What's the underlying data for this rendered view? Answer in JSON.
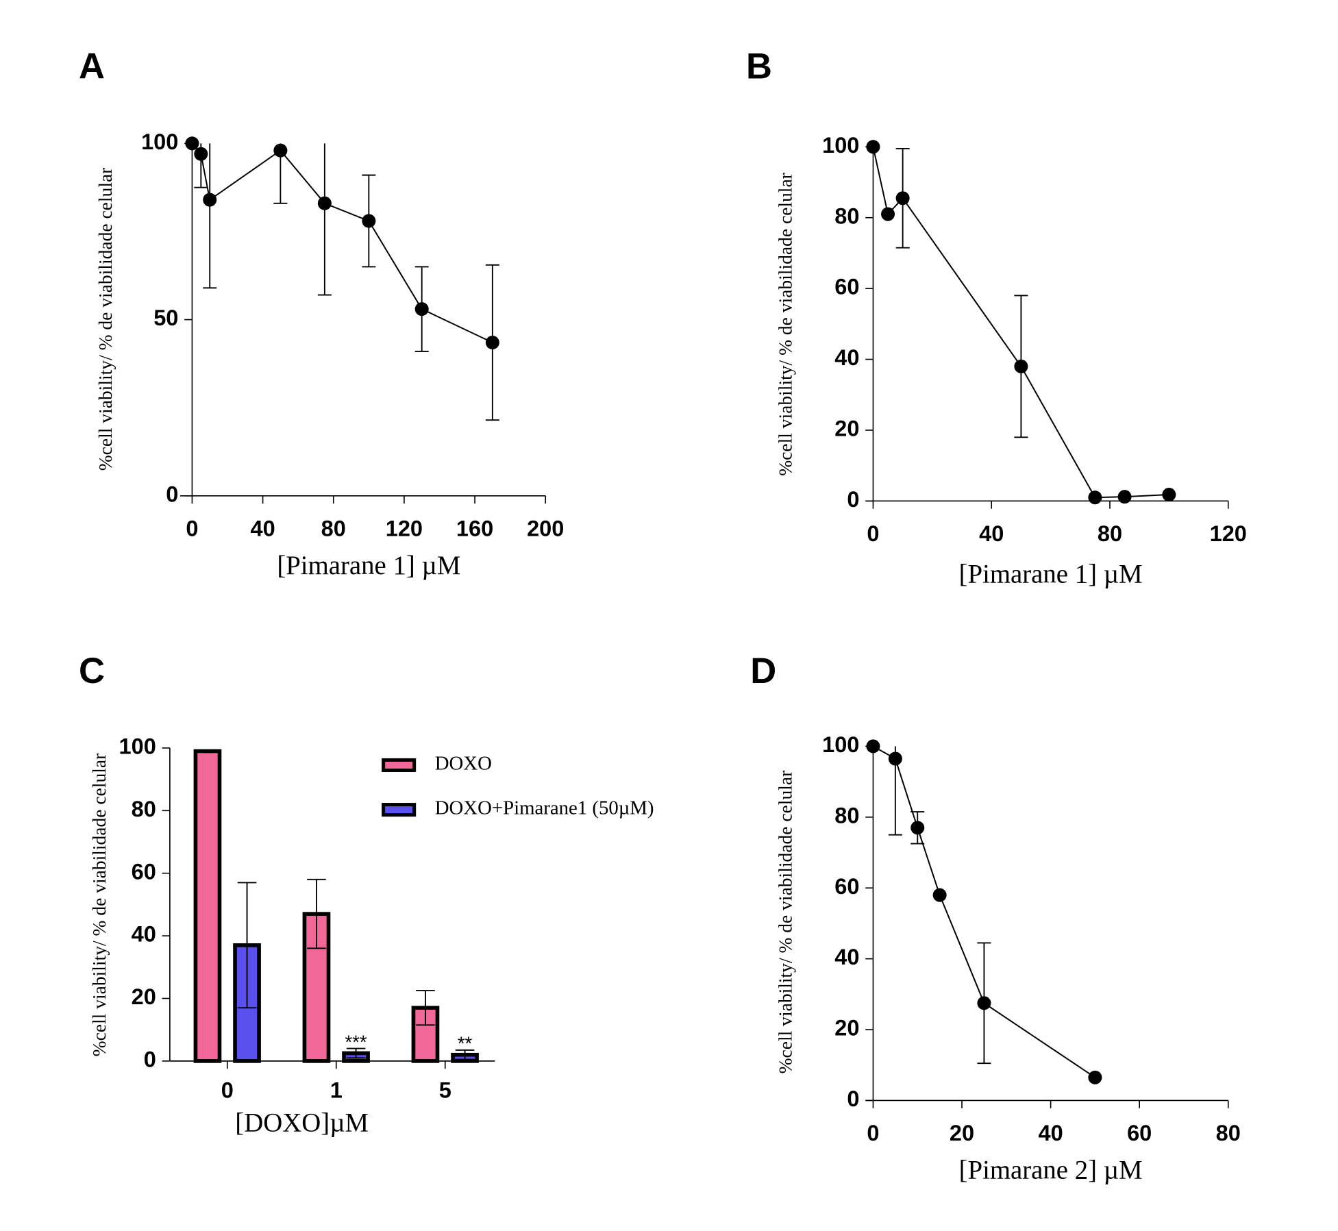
{
  "chart_data": [
    {
      "type": "line",
      "label": "A",
      "x": [
        0,
        5,
        10,
        50,
        75,
        100,
        130,
        170
      ],
      "values": [
        100,
        97,
        84,
        98,
        83,
        78,
        53,
        43.5
      ],
      "errors": [
        null,
        9.5,
        25,
        15,
        26,
        13,
        12,
        22
      ],
      "color": "#000000",
      "xlabel": "[Pimarane 1] µM",
      "ylabel": "%cell viability/ % de viabilidade celular",
      "xlim": [
        0,
        200
      ],
      "xticks": [
        0,
        40,
        80,
        120,
        160,
        200
      ],
      "ylim": [
        0,
        100
      ],
      "yticks": [
        0,
        50,
        100
      ]
    },
    {
      "type": "line",
      "label": "B",
      "x": [
        0,
        5,
        10,
        50,
        75,
        85,
        100
      ],
      "values": [
        100,
        81,
        85.5,
        38,
        1,
        1.2,
        1.8
      ],
      "errors": [
        null,
        null,
        14,
        20,
        null,
        null,
        null
      ],
      "color": "#000000",
      "xlabel": "[Pimarane 1] µM",
      "ylabel": "%cell viability/ % de viabilidade celular",
      "xlim": [
        0,
        120
      ],
      "xticks": [
        0,
        40,
        80,
        120
      ],
      "ylim": [
        0,
        100
      ],
      "yticks": [
        0,
        20,
        40,
        60,
        80,
        100
      ]
    },
    {
      "type": "bar",
      "label": "C",
      "categories": [
        "0",
        "1",
        "5"
      ],
      "series": [
        {
          "name": "DOXO",
          "color": "#f2679a",
          "values": [
            99,
            47,
            17
          ],
          "errors": [
            null,
            11,
            5.5
          ],
          "annotations": [
            null,
            null,
            null
          ]
        },
        {
          "name": "DOXO+Pimarane1 (50µM)",
          "color": "#5a50ee",
          "values": [
            37,
            2.5,
            2
          ],
          "errors": [
            20,
            1.5,
            1.5
          ],
          "annotations": [
            null,
            "***",
            "**"
          ]
        }
      ],
      "xlabel": "[DOXO]µM",
      "ylabel": "%cell viability/ % de viabilidade celular",
      "ylim": [
        0,
        100
      ],
      "yticks": [
        0,
        20,
        40,
        60,
        80,
        100
      ],
      "legend": "upper right"
    },
    {
      "type": "line",
      "label": "D",
      "x": [
        0,
        5,
        10,
        15,
        25,
        50
      ],
      "values": [
        100,
        96.5,
        77,
        58,
        27.5,
        6.5
      ],
      "errors": [
        null,
        21.5,
        4.5,
        null,
        17,
        null
      ],
      "color": "#000000",
      "xlabel": "[Pimarane 2] µM",
      "ylabel": "%cell viability/ % de viabilidade celular",
      "xlim": [
        0,
        80
      ],
      "xticks": [
        0,
        20,
        40,
        60,
        80
      ],
      "ylim": [
        0,
        100
      ],
      "yticks": [
        0,
        20,
        40,
        60,
        80,
        100
      ]
    }
  ]
}
